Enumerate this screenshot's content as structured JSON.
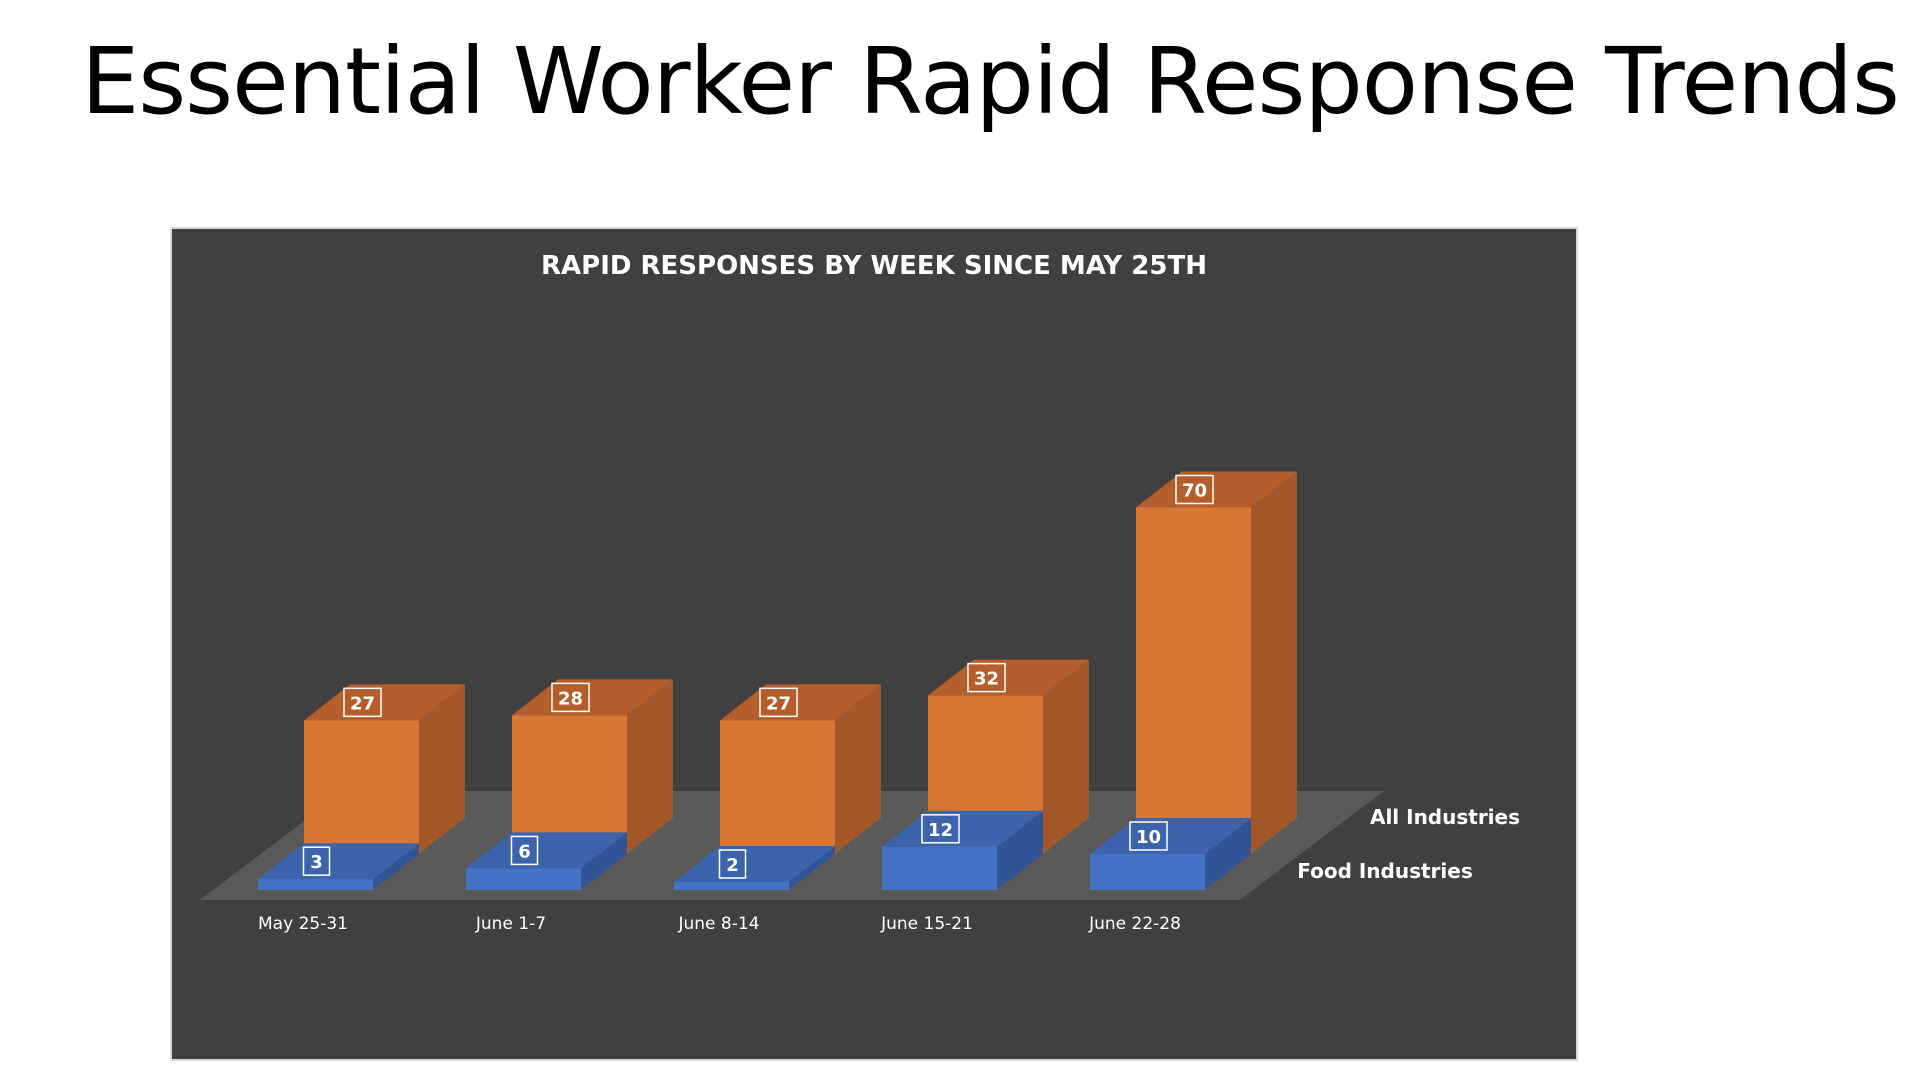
{
  "slide": {
    "title": "Essential Worker Rapid Response Trends"
  },
  "colors": {
    "panel": "#404040",
    "floor": "#595959",
    "all_front": "#d97634",
    "all_side": "#a4582a",
    "all_top": "#b45f2b",
    "food_front": "#4472c4",
    "food_side": "#2f5597",
    "food_top": "#3b64ad"
  },
  "chart_data": {
    "type": "bar",
    "title": "RAPID RESPONSES BY WEEK SINCE MAY 25TH",
    "categories": [
      "May 25-31",
      "June 1-7",
      "June 8-14",
      "June 15-21",
      "June 22-28"
    ],
    "series": [
      {
        "name": "All Industries",
        "values": [
          27,
          28,
          27,
          32,
          70
        ]
      },
      {
        "name": "Food Industries",
        "values": [
          3,
          6,
          2,
          12,
          10
        ]
      }
    ],
    "style": "3d-clustered-depth",
    "grid": false,
    "legend": "series names at right of depth rows"
  }
}
